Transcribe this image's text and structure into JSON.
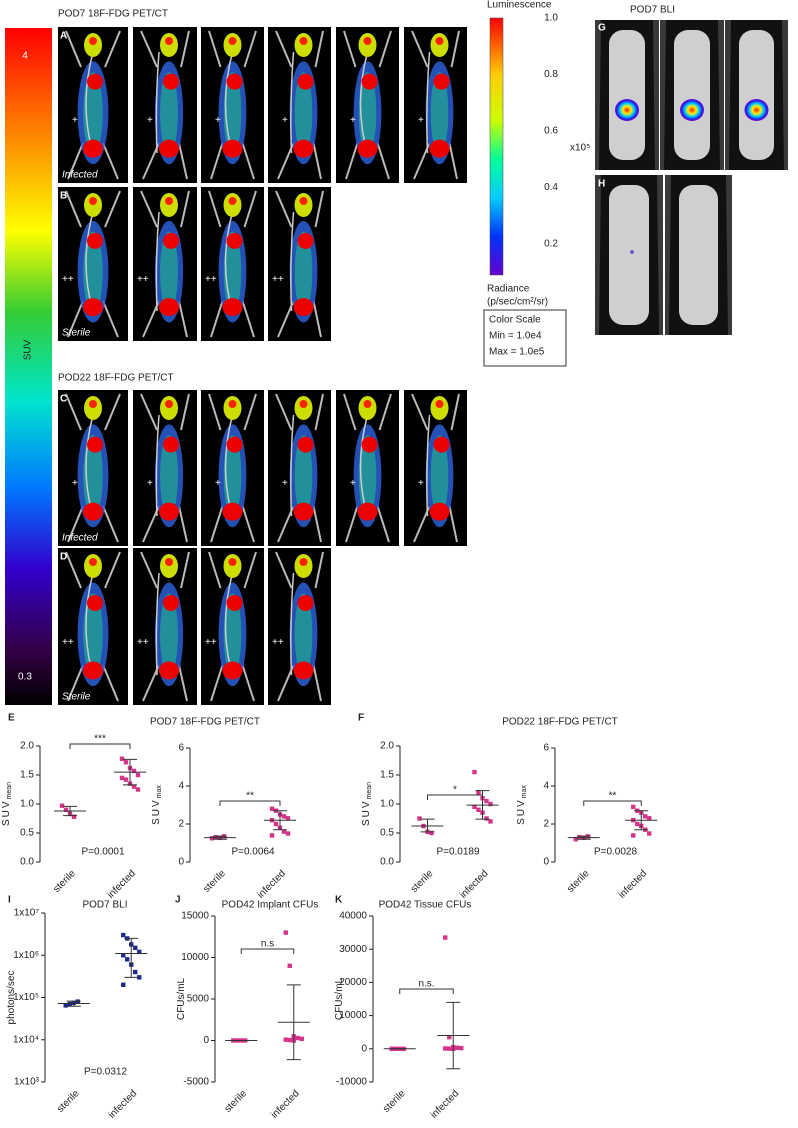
{
  "figure": {
    "suv_scale": {
      "max": "4",
      "label": "SUV",
      "min": "0.3"
    },
    "pet_pod7": {
      "title": "POD7 18F-FDG PET/CT",
      "panel_top": "A",
      "panel_bottom": "B",
      "infected": "Infected",
      "sterile": "Sterile",
      "markers_top": [
        "+",
        "+",
        "+",
        "+",
        "+",
        "+"
      ],
      "markers_bottom": [
        "++",
        "++",
        "++",
        "++"
      ]
    },
    "pet_pod22": {
      "title": "POD22 18F-FDG PET/CT",
      "panel_top": "C",
      "panel_bottom": "D",
      "infected": "Infected",
      "sterile": "Sterile",
      "markers_top": [
        "+",
        "+",
        "+",
        "+",
        "+",
        "+"
      ],
      "markers_bottom": [
        "++",
        "++",
        "++",
        "++"
      ]
    },
    "bli": {
      "title": "POD7 BLI",
      "panel_top": "G",
      "panel_bottom": "H",
      "scale_title": "Luminescence",
      "scale_ticks": [
        "1.0",
        "0.8",
        "0.6",
        "0.4",
        "0.2"
      ],
      "multiplier": "x10⁵",
      "unit_1": "Radiance",
      "unit_2": "(p/sec/cm²/sr)",
      "box": [
        "Color Scale",
        "Min = 1.0e4",
        "Max = 1.0e5"
      ]
    }
  },
  "chart_data": [
    {
      "type": "strip",
      "panel": "E",
      "title": "POD7 18F-FDG PET/CT",
      "ylabel": "SUV",
      "ylabel_sub": "mean",
      "categories": [
        "sterile",
        "infected"
      ],
      "values": [
        [
          0.97,
          0.9,
          0.83,
          0.78
        ],
        [
          1.78,
          1.72,
          1.62,
          1.57,
          1.5,
          1.45,
          1.42,
          1.35,
          1.3,
          1.25
        ]
      ],
      "means": [
        0.88,
        1.55
      ],
      "error_bounds": [
        [
          0.8,
          0.96
        ],
        [
          1.33,
          1.77
        ]
      ],
      "color": "#d6338a",
      "ylim": [
        0,
        2
      ],
      "yticks": [
        {
          "value": 0,
          "label": "0.0"
        },
        {
          "value": 0.5,
          "label": "0.5"
        },
        {
          "value": 1,
          "label": "1.0"
        },
        {
          "value": 1.5,
          "label": "1.5"
        },
        {
          "value": 2,
          "label": "2.0"
        }
      ],
      "significance": "***",
      "p_value": "P=0.0001"
    },
    {
      "type": "strip",
      "ylabel": "SUV",
      "ylabel_sub": "max",
      "categories": [
        "sterile",
        "infected"
      ],
      "values": [
        [
          1.25,
          1.3,
          1.27,
          1.35
        ],
        [
          2.8,
          2.7,
          2.5,
          2.4,
          2.3,
          2.2,
          2.0,
          1.8,
          1.6,
          1.5,
          1.4
        ]
      ],
      "means": [
        1.28,
        2.2
      ],
      "error_bounds": [
        [
          1.2,
          1.36
        ],
        [
          1.7,
          2.7
        ]
      ],
      "color": "#d6338a",
      "ylim": [
        0,
        6
      ],
      "yticks": [
        0,
        2,
        4,
        6
      ],
      "significance": "**",
      "p_value": "P=0.0064"
    },
    {
      "type": "strip",
      "panel": "F",
      "title": "POD22 18F-FDG PET/CT",
      "ylabel": "SUV",
      "ylabel_sub": "mean",
      "categories": [
        "sterile",
        "infected"
      ],
      "values": [
        [
          0.75,
          0.62,
          0.52,
          0.5
        ],
        [
          1.55,
          1.2,
          1.1,
          1.05,
          1.0,
          0.95,
          0.9,
          0.85,
          0.75,
          0.7
        ]
      ],
      "means": [
        0.62,
        0.98
      ],
      "error_bounds": [
        [
          0.52,
          0.74
        ],
        [
          0.74,
          1.23
        ]
      ],
      "color": "#d6338a",
      "ylim": [
        0,
        2
      ],
      "yticks": [
        {
          "value": 0,
          "label": "0.0"
        },
        {
          "value": 0.5,
          "label": "0.5"
        },
        {
          "value": 1,
          "label": "1.0"
        },
        {
          "value": 1.5,
          "label": "1.5"
        },
        {
          "value": 2,
          "label": "2.0"
        }
      ],
      "significance": "*",
      "p_value": "P=0.0189"
    },
    {
      "type": "strip",
      "ylabel": "SUV",
      "ylabel_sub": "max",
      "categories": [
        "sterile",
        "infected"
      ],
      "values": [
        [
          1.2,
          1.3,
          1.27,
          1.35
        ],
        [
          2.9,
          2.7,
          2.6,
          2.4,
          2.3,
          2.2,
          2.0,
          1.9,
          1.7,
          1.5,
          1.4
        ]
      ],
      "means": [
        1.28,
        2.2
      ],
      "error_bounds": [
        [
          1.2,
          1.36
        ],
        [
          1.7,
          2.7
        ]
      ],
      "color": "#d6338a",
      "ylim": [
        0,
        6
      ],
      "yticks": [
        0,
        2,
        4,
        6
      ],
      "significance": "**",
      "p_value": "P=0.0028"
    },
    {
      "type": "strip",
      "panel": "I",
      "title": "POD7 BLI",
      "ylabel": "photons/sec",
      "log_y": true,
      "categories": [
        "sterile",
        "infected"
      ],
      "values": [
        [
          65000,
          70000,
          75000,
          80000
        ],
        [
          3000000,
          2500000,
          1800000,
          1500000,
          1200000,
          1000000,
          800000,
          600000,
          400000,
          300000,
          200000
        ]
      ],
      "means": [
        72000,
        1100000
      ],
      "error_bounds": [
        [
          62000,
          82000
        ],
        [
          300000,
          2500000
        ]
      ],
      "color": "#1c2a8c",
      "ylim": [
        1000,
        10000000
      ],
      "yticks": [
        {
          "value": 1000,
          "label": "1x10³"
        },
        {
          "value": 10000,
          "label": "1x10⁴"
        },
        {
          "value": 100000,
          "label": "1x10⁵"
        },
        {
          "value": 1000000,
          "label": "1x10⁶"
        },
        {
          "value": 10000000,
          "label": "1x10⁷"
        }
      ],
      "p_value": "P=0.0312"
    },
    {
      "type": "strip",
      "panel": "J",
      "title": "POD42 Implant CFUs",
      "ylabel": "CFUs/mL",
      "categories": [
        "sterile",
        "infected"
      ],
      "values": [
        [
          0,
          0,
          0,
          0
        ],
        [
          13000,
          9000,
          500,
          300,
          200,
          100,
          50,
          0
        ]
      ],
      "means": [
        0,
        2200
      ],
      "error_bounds": [
        [
          0,
          0
        ],
        [
          -2300,
          6700
        ]
      ],
      "color": "#d6338a",
      "ylim": [
        -5000,
        15000
      ],
      "yticks": [
        -5000,
        0,
        5000,
        10000,
        15000
      ],
      "significance": "n.s"
    },
    {
      "type": "strip",
      "panel": "K",
      "title": "POD42 Tissue CFUs",
      "ylabel": "CFUs/mL",
      "categories": [
        "sterile",
        "infected"
      ],
      "values": [
        [
          0,
          0,
          0,
          0
        ],
        [
          33500,
          3500,
          500,
          300,
          200,
          100,
          50,
          0
        ]
      ],
      "means": [
        0,
        4000
      ],
      "error_bounds": [
        [
          0,
          0
        ],
        [
          -6000,
          14000
        ]
      ],
      "color": "#d6338a",
      "ylim": [
        -10000,
        40000
      ],
      "yticks": [
        -10000,
        0,
        10000,
        20000,
        30000,
        40000
      ],
      "significance": "n.s."
    }
  ]
}
